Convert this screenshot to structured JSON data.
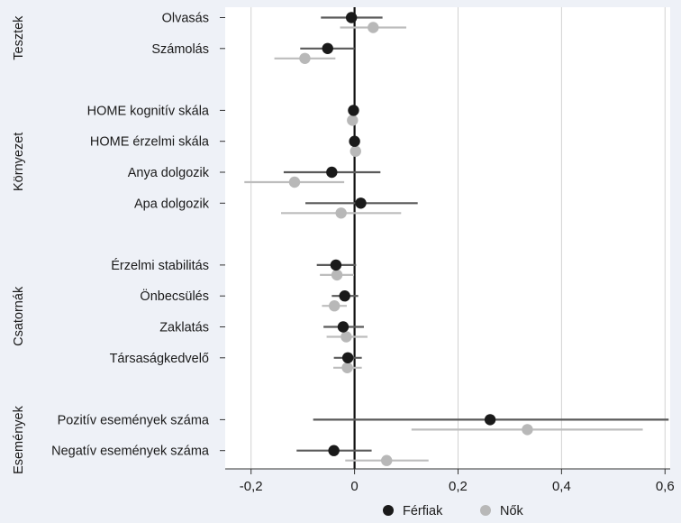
{
  "chart_data": {
    "type": "scatter",
    "subtype": "coefficient-plot",
    "title": "",
    "xlabel": "",
    "ylabel": "",
    "xlim": [
      -0.25,
      0.61
    ],
    "x_ticks": [
      -0.2,
      0,
      0.2,
      0.4,
      0.6
    ],
    "x_tick_labels": [
      "-0,2",
      "0",
      "0,2",
      "0,4",
      "0,6"
    ],
    "grid": true,
    "legend_position": "bottom",
    "colors": {
      "background": "#eef1f7",
      "gridline": "#d2d2d2",
      "zeroline": "#111111",
      "ferfiak_point": "#1a1a1a",
      "ferfiak_ci": "#5a5a5a",
      "nok_point": "#b8b8b8",
      "nok_ci": "#bdbdbd",
      "text": "#1a1a1a",
      "axis": "#333333"
    },
    "groups": [
      {
        "label": "Tesztek",
        "items": [
          "Olvasás",
          "Számolás"
        ]
      },
      {
        "label": "Környezet",
        "items": [
          "HOME kognitív skála",
          "HOME érzelmi skála",
          "Anya dolgozik",
          "Apa dolgozik"
        ]
      },
      {
        "label": "Csatornák",
        "items": [
          "Érzelmi stabilitás",
          "Önbecsülés",
          "Zaklatás",
          "Társaságkedvelő"
        ]
      },
      {
        "label": "Események",
        "items": [
          "Pozitív események száma",
          "Negatív események száma"
        ]
      }
    ],
    "categories": [
      "Olvasás",
      "Számolás",
      "HOME kognitív skála",
      "HOME érzelmi skála",
      "Anya dolgozik",
      "Apa dolgozik",
      "Érzelmi stabilitás",
      "Önbecsülés",
      "Zaklatás",
      "Társaságkedvelő",
      "Pozitív események száma",
      "Negatív események száma"
    ],
    "series": [
      {
        "name": "Férfiak",
        "values": [
          -0.006,
          -0.052,
          -0.002,
          0.0,
          -0.044,
          0.012,
          -0.036,
          -0.019,
          -0.022,
          -0.013,
          0.262,
          -0.04
        ],
        "ci_low": [
          -0.065,
          -0.105,
          -0.004,
          -0.003,
          -0.137,
          -0.095,
          -0.073,
          -0.044,
          -0.06,
          -0.04,
          -0.08,
          -0.112
        ],
        "ci_high": [
          0.054,
          0.0,
          0.001,
          0.003,
          0.05,
          0.122,
          0.003,
          0.007,
          0.018,
          0.014,
          0.607,
          0.033
        ]
      },
      {
        "name": "Nők",
        "values": [
          0.036,
          -0.096,
          -0.004,
          0.002,
          -0.116,
          -0.026,
          -0.034,
          -0.039,
          -0.016,
          -0.014,
          0.334,
          0.062
        ]
      }
    ],
    "series_nok_ci": {
      "ci_low": [
        -0.028,
        -0.155,
        -0.006,
        -0.001,
        -0.213,
        -0.142,
        -0.067,
        -0.063,
        -0.054,
        -0.041,
        0.11,
        -0.018
      ],
      "ci_high": [
        0.1,
        -0.037,
        -0.002,
        0.005,
        -0.02,
        0.09,
        -0.001,
        -0.015,
        0.025,
        0.014,
        0.557,
        0.143
      ]
    }
  }
}
